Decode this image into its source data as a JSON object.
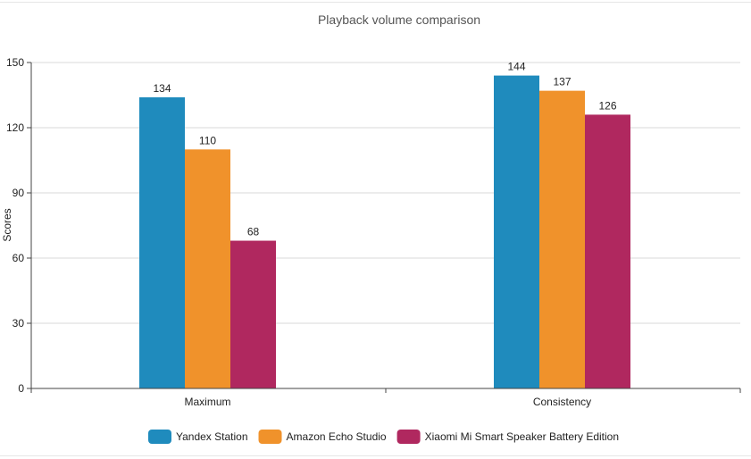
{
  "chart_data": {
    "type": "bar",
    "title": "Playback volume comparison",
    "xlabel": "",
    "ylabel": "Scores",
    "ylim": [
      0,
      150
    ],
    "yticks": [
      0,
      30,
      60,
      90,
      120,
      150
    ],
    "grid": true,
    "legend_position": "bottom",
    "categories": [
      "Maximum",
      "Consistency"
    ],
    "series": [
      {
        "name": "Yandex Station",
        "color": "#1f8bbd",
        "values": [
          134,
          144
        ]
      },
      {
        "name": "Amazon Echo Studio",
        "color": "#f0922b",
        "values": [
          110,
          137
        ]
      },
      {
        "name": "Xiaomi Mi Smart Speaker Battery Edition",
        "color": "#b0285f",
        "values": [
          68,
          126
        ]
      }
    ]
  }
}
